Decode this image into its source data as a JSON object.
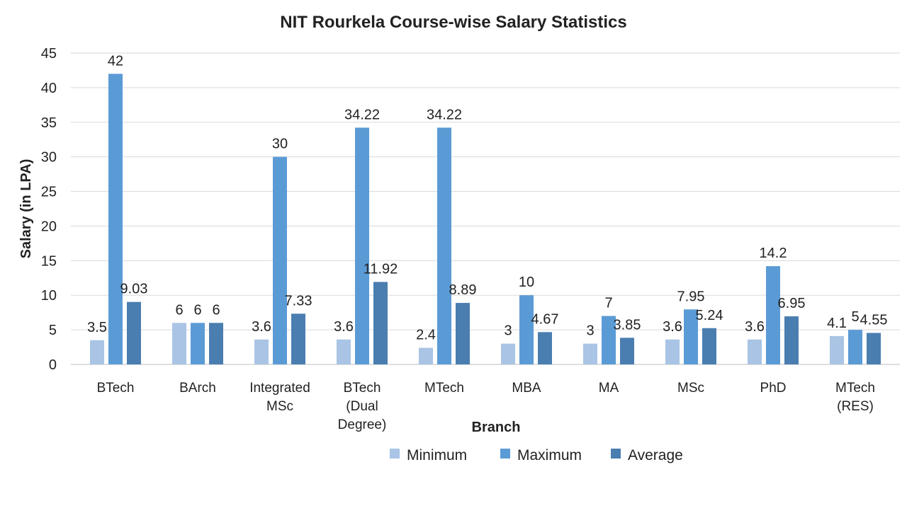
{
  "chart_data": {
    "type": "bar",
    "title": "NIT Rourkela Course-wise Salary Statistics",
    "xlabel": "Branch",
    "ylabel": "Salary (in LPA)",
    "ylim": [
      0,
      45
    ],
    "yticks": [
      0,
      5,
      10,
      15,
      20,
      25,
      30,
      35,
      40,
      45
    ],
    "grid": true,
    "legend_position": "bottom",
    "categories": [
      [
        "BTech"
      ],
      [
        "BArch"
      ],
      [
        "Integrated",
        "MSc"
      ],
      [
        "BTech",
        "(Dual",
        "Degree)"
      ],
      [
        "MTech"
      ],
      [
        "MBA"
      ],
      [
        "MA"
      ],
      [
        "MSc"
      ],
      [
        "PhD"
      ],
      [
        "MTech",
        "(RES)"
      ]
    ],
    "series": [
      {
        "name": "Minimum",
        "color": "#a9c4e4",
        "values": [
          3.5,
          6,
          3.6,
          3.6,
          2.4,
          3,
          3,
          3.6,
          3.6,
          4.1
        ]
      },
      {
        "name": "Maximum",
        "color": "#5b9bd5",
        "values": [
          42,
          6,
          30,
          34.22,
          34.22,
          10,
          7,
          7.95,
          14.2,
          5
        ]
      },
      {
        "name": "Average",
        "color": "#4a7eb0",
        "values": [
          9.03,
          6,
          7.33,
          11.92,
          8.89,
          4.67,
          3.85,
          5.24,
          6.95,
          4.55
        ]
      }
    ]
  }
}
